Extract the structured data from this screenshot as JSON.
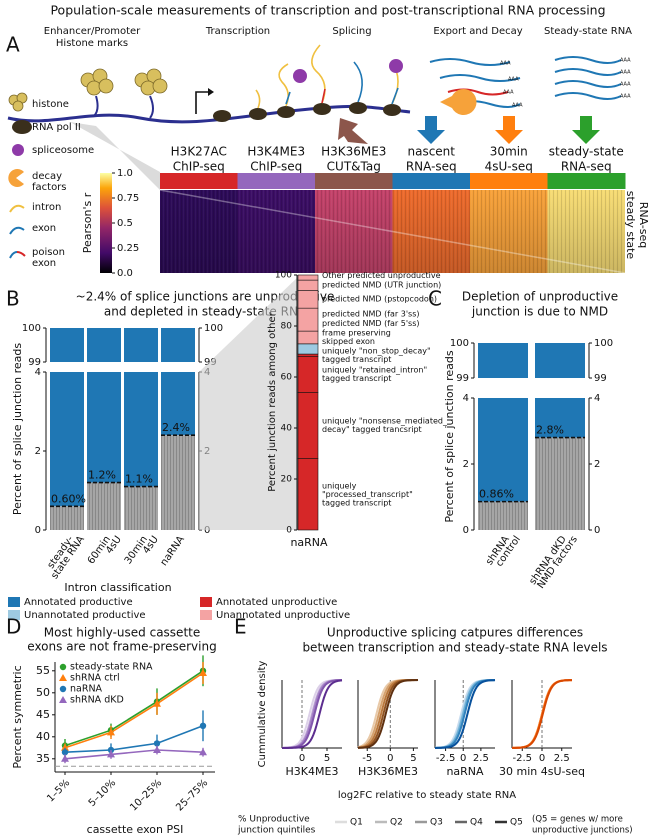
{
  "title": "Population-scale measurements of transcription and post-transcriptional RNA processing",
  "panel_a": {
    "letter": "A",
    "stages": [
      [
        "Enhancer/Promoter",
        "Histone marks"
      ],
      [
        "Transcription"
      ],
      [
        "Splicing"
      ],
      [
        "Export and Decay"
      ],
      [
        "Steady-state RNA"
      ]
    ],
    "polya": "AAA",
    "legend": [
      [
        "histone"
      ],
      [
        "RNA pol II"
      ],
      [
        "spliceosome"
      ],
      [
        "decay",
        "factors"
      ],
      [
        "intron"
      ],
      [
        "exon"
      ],
      [
        "poison",
        "exon"
      ]
    ],
    "assays": [
      {
        "name": [
          "H3K27AC",
          "ChIP-seq"
        ],
        "color": "#d62728"
      },
      {
        "name": [
          "H3K4ME3",
          "ChIP-seq"
        ],
        "color": "#9467bd"
      },
      {
        "name": [
          "H3K36ME3",
          "CUT&Tag"
        ],
        "color": "#8c564b"
      },
      {
        "name": [
          "nascent",
          "RNA-seq"
        ],
        "color": "#1f77b4"
      },
      {
        "name": [
          "30min",
          "4sU-seq"
        ],
        "color": "#ff7f0e"
      },
      {
        "name": [
          "steady-state",
          "RNA-seq"
        ],
        "color": "#2ca02c"
      }
    ],
    "colorbar": {
      "label": "Pearson's r",
      "lim": [
        0,
        1
      ],
      "ticks": [
        {
          "value": 0,
          "label": "0.0"
        },
        0.25,
        0.5,
        0.75,
        {
          "value": 1,
          "label": "1.0"
        }
      ]
    },
    "side_label": [
      "steady state",
      "RNA-seq"
    ],
    "side_color": "#2ca02c"
  },
  "panel_b": {
    "letter": "B",
    "title": [
      "~2.4% of splice junctions are unproductive",
      "and depleted in steady-state RNA"
    ],
    "ylabel": "Percent of splice junction reads",
    "upper_ylim": [
      99,
      100
    ],
    "upper_yticks": [
      99,
      100
    ],
    "lower_ylim": [
      0,
      4
    ],
    "lower_yticks": [
      0,
      2,
      4
    ],
    "categories": [
      [
        "steady-",
        "state RNA"
      ],
      [
        "60min",
        "4sU"
      ],
      [
        "30min",
        "4sU"
      ],
      [
        "naRNA"
      ]
    ],
    "values": [
      0.6,
      1.2,
      1.1,
      2.4
    ],
    "value_labels": [
      "0.60%",
      "1.2%",
      "1.1%",
      "2.4%"
    ],
    "productive_color": "#1f77b4",
    "xlabel": "Intron classification",
    "legend": [
      {
        "name": "Annotated productive",
        "color": "#1f77b4"
      },
      {
        "name": "Annotated unproductive",
        "color": "#d62728"
      },
      {
        "name": "Unannotated productive",
        "color": "#9ecae1"
      },
      {
        "name": "Unannotated unproductive",
        "color": "#f4a3a3"
      }
    ],
    "stack": {
      "ylabel": "Percent junction reads among other",
      "ylim": [
        0,
        100
      ],
      "yticks": [
        0,
        20,
        40,
        60,
        80,
        100
      ],
      "xlabel": "naRNA",
      "segments": [
        {
          "name": [
            "uniquely",
            "\"processed_transcript\"",
            "tagged transcript"
          ],
          "value": 28,
          "color": "#d62728"
        },
        {
          "name": [
            "uniquely \"nonsense_mediated_",
            "decay\" tagged trancsript"
          ],
          "value": 26,
          "color": "#d62728"
        },
        {
          "name": [
            "uniquely \"retained_intron\"",
            "tagged transcript"
          ],
          "value": 14,
          "color": "#d62728"
        },
        {
          "name": [
            "uniquely \"non_stop_decay\"",
            "tagged transcript"
          ],
          "value": 1,
          "color": "#d62728"
        },
        {
          "name": [
            "frame preserving",
            "skipped exon"
          ],
          "value": 4,
          "color": "#9ecae1"
        },
        {
          "name": [
            "predicted NMD (far 5'ss)"
          ],
          "value": 5,
          "color": "#f4a3a3"
        },
        {
          "name": [
            "predicted NMD (far 3'ss)"
          ],
          "value": 9,
          "color": "#f4a3a3"
        },
        {
          "name": [
            "predicted NMD (pstopcodon)"
          ],
          "value": 7,
          "color": "#f4a3a3"
        },
        {
          "name": [
            "predicted NMD (UTR junction)"
          ],
          "value": 4,
          "color": "#f4a3a3"
        },
        {
          "name": [
            "Other predicted unproductive"
          ],
          "value": 2,
          "color": "#f4a3a3"
        }
      ]
    }
  },
  "panel_c": {
    "letter": "C",
    "title": [
      "Depletion of unproductive",
      "junction is due to NMD"
    ],
    "ylabel": "Percent of splice junction reads",
    "upper_ylim": [
      99,
      100
    ],
    "upper_yticks": [
      99,
      100
    ],
    "lower_ylim": [
      0,
      4
    ],
    "lower_yticks": [
      0,
      2,
      4
    ],
    "categories": [
      [
        "shRNA",
        "control"
      ],
      [
        "shRNA dKD",
        "NMD factors"
      ]
    ],
    "values": [
      0.86,
      2.8
    ],
    "value_labels": [
      "0.86%",
      "2.8%"
    ],
    "productive_color": "#1f77b4"
  },
  "panel_d": {
    "letter": "D",
    "type": "line",
    "title": [
      "Most highly-used cassette",
      "exons are not frame-preserving"
    ],
    "ylabel": "Percent symmetric",
    "xlabel": "cassette exon PSI",
    "categories": [
      "1–5%",
      "5–10%",
      "10–25%",
      "25–75%"
    ],
    "ylim": [
      32,
      57
    ],
    "yticks": [
      35,
      40,
      45,
      50,
      55
    ],
    "reference_line": 33.3,
    "series": [
      {
        "name": "steady-state RNA",
        "color": "#2ca02c",
        "marker": "circle",
        "values": [
          38,
          41.5,
          48,
          55
        ],
        "errors": [
          1.5,
          1.5,
          3,
          3.5
        ]
      },
      {
        "name": "shRNA ctrl",
        "color": "#ff7f0e",
        "marker": "triangle",
        "values": [
          37.5,
          41,
          47.5,
          54.5
        ],
        "errors": [
          1,
          1.5,
          2.5,
          2.5
        ]
      },
      {
        "name": "naRNA",
        "color": "#1f77b4",
        "marker": "circle",
        "values": [
          36.5,
          37,
          38.5,
          42.5
        ],
        "errors": [
          1,
          1.5,
          2,
          3.5
        ]
      },
      {
        "name": "shRNA dKD",
        "color": "#9467bd",
        "marker": "triangle",
        "values": [
          35,
          36,
          37,
          36.5
        ],
        "errors": [
          1,
          1,
          1,
          1
        ]
      }
    ]
  },
  "panel_e": {
    "letter": "E",
    "type": "cdf",
    "title": [
      "Unproductive splicing catpures differences",
      "between transcription and steady-state RNA levels"
    ],
    "ylabel": "Cummulative density",
    "xlabel": "log2FC relative to steady state RNA",
    "plots": [
      {
        "name": "H3K4ME3",
        "color": "#7b3fa0",
        "xlim": [
          -4,
          8
        ],
        "xticks": [
          0,
          5
        ],
        "medians": [
          1.5,
          2,
          2.2,
          2.5,
          3.5
        ],
        "colors": [
          "#dcd0e8",
          "#c0a8d8",
          "#a27fc4",
          "#8257ad",
          "#5c2d8f"
        ]
      },
      {
        "name": "H3K36ME3",
        "color": "#8c564b",
        "xlim": [
          -7,
          6
        ],
        "xticks": [
          -5,
          0,
          5
        ],
        "medians": [
          -3,
          -2.5,
          -2,
          -1.5,
          -1
        ],
        "colors": [
          "#e8c9a8",
          "#d4a06c",
          "#b9773c",
          "#8e5120",
          "#5e3010"
        ]
      },
      {
        "name": "naRNA",
        "color": "#1f77b4",
        "xlim": [
          -4,
          4.5
        ],
        "xticks": [
          -2.5,
          0,
          2.5
        ],
        "medians": [
          -0.3,
          -0.1,
          0,
          0.2,
          0.6
        ],
        "colors": [
          "#c6dbef",
          "#9ecae1",
          "#6baed6",
          "#3182bd",
          "#08519c"
        ]
      },
      {
        "name": "30 min 4sU-seq",
        "color": "#ff7f0e",
        "xlim": [
          -3.8,
          3.8
        ],
        "xticks": [
          -2.5,
          0,
          2.5
        ],
        "medians": [
          0,
          0,
          0,
          0.05,
          0.1
        ],
        "colors": [
          "#fdd0a2",
          "#fdae6b",
          "#fd8d3c",
          "#f16913",
          "#d94801"
        ]
      }
    ],
    "legend_title": [
      "% Unproductive",
      "junction quintiles"
    ],
    "quintiles": [
      "Q1",
      "Q2",
      "Q3",
      "Q4",
      "Q5"
    ],
    "quintile_colors": [
      "#dddddd",
      "#bbbbbb",
      "#999999",
      "#666666",
      "#333333"
    ],
    "legend_note": [
      "(Q5 = genes w/ more",
      "unproductive junctions)"
    ]
  }
}
